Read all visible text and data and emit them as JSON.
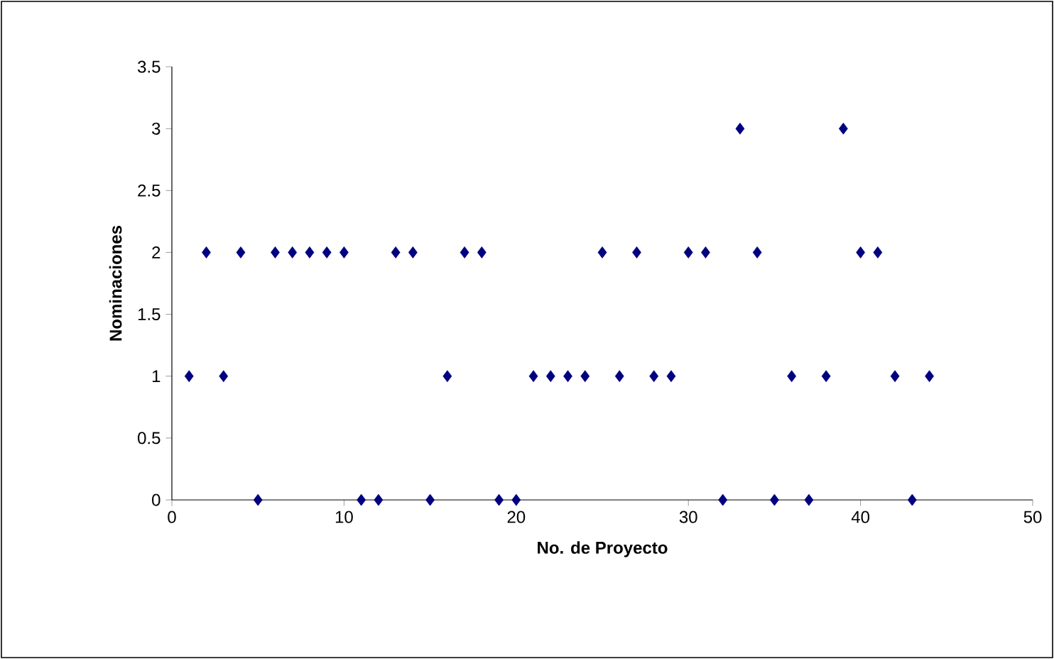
{
  "chart_data": {
    "type": "scatter",
    "xlabel": "No. de Proyecto",
    "ylabel": "Nominaciones",
    "x": [
      1,
      2,
      3,
      4,
      5,
      6,
      7,
      8,
      9,
      10,
      11,
      12,
      13,
      14,
      15,
      16,
      17,
      18,
      19,
      20,
      21,
      22,
      23,
      24,
      25,
      26,
      27,
      28,
      29,
      30,
      31,
      32,
      33,
      34,
      35,
      36,
      37,
      38,
      39,
      40,
      41,
      42,
      43,
      44
    ],
    "series": [
      {
        "color": "#000080",
        "values": [
          1,
          2,
          1,
          2,
          0,
          2,
          2,
          2,
          2,
          2,
          0,
          0,
          2,
          2,
          0,
          1,
          2,
          2,
          0,
          0,
          1,
          1,
          1,
          1,
          2,
          1,
          2,
          1,
          1,
          2,
          2,
          0,
          3,
          2,
          0,
          1,
          0,
          1,
          3,
          2,
          2,
          1,
          0,
          1
        ]
      }
    ],
    "xlim": [
      0,
      50
    ],
    "xticks": [
      0,
      10,
      20,
      30,
      40,
      50
    ],
    "ylim": [
      0,
      3.5
    ],
    "yticks": [
      0,
      0.5,
      1,
      1.5,
      2,
      2.5,
      3,
      3.5
    ],
    "marker": "diamond"
  }
}
